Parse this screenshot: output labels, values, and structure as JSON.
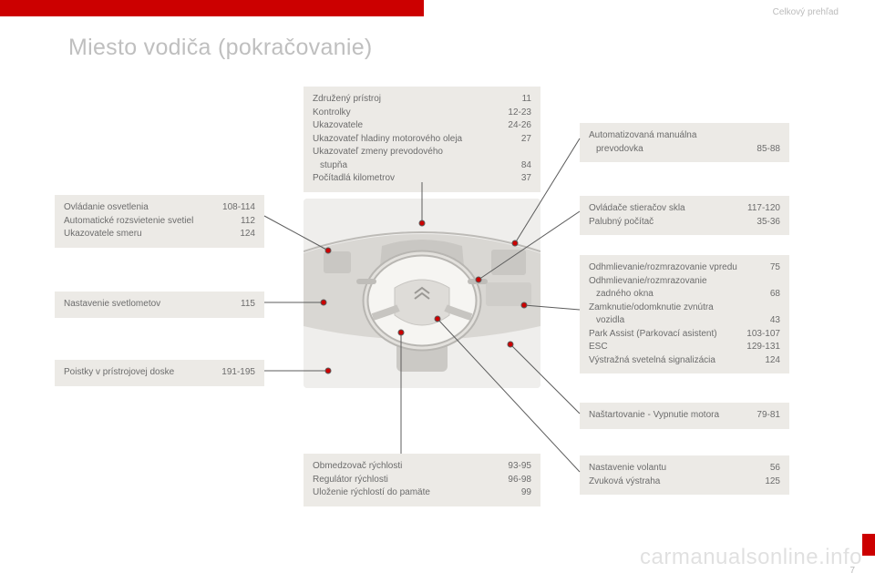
{
  "header": {
    "section": "Celkový prehľad",
    "title": "Miesto vodiča (pokračovanie)"
  },
  "boxes": {
    "top_center": {
      "items": [
        {
          "label": "Združený prístroj",
          "page": "11"
        },
        {
          "label": "Kontrolky",
          "page": "12-23"
        },
        {
          "label": "Ukazovatele",
          "page": "24-26"
        },
        {
          "label": "Ukazovateľ hladiny motorového oleja",
          "page": "27"
        },
        {
          "label": "Ukazovateľ zmeny prevodového",
          "page": ""
        },
        {
          "label": "stupňa",
          "page": "84",
          "indent": true
        },
        {
          "label": "Počítadlá kilometrov",
          "page": "37"
        }
      ]
    },
    "left1": {
      "items": [
        {
          "label": "Ovládanie osvetlenia",
          "page": "108-114"
        },
        {
          "label": "Automatické rozsvietenie svetiel",
          "page": "112"
        },
        {
          "label": "Ukazovatele smeru",
          "page": "124"
        }
      ]
    },
    "left2": {
      "items": [
        {
          "label": "Nastavenie svetlometov",
          "page": "115"
        }
      ]
    },
    "left3": {
      "items": [
        {
          "label": "Poistky v prístrojovej doske",
          "page": "191-195"
        }
      ]
    },
    "right1": {
      "items": [
        {
          "label": "Automatizovaná manuálna",
          "page": ""
        },
        {
          "label": "prevodovka",
          "page": "85-88",
          "indent": true
        }
      ]
    },
    "right2": {
      "items": [
        {
          "label": "Ovládače stieračov skla",
          "page": "117-120"
        },
        {
          "label": "Palubný počítač",
          "page": "35-36"
        }
      ]
    },
    "right3": {
      "items": [
        {
          "label": "Odhmlievanie/rozmrazovanie vpredu",
          "page": "75"
        },
        {
          "label": "Odhmlievanie/rozmrazovanie",
          "page": ""
        },
        {
          "label": "zadného okna",
          "page": "68",
          "indent": true
        },
        {
          "label": "Zamknutie/odomknutie zvnútra",
          "page": ""
        },
        {
          "label": "vozidla",
          "page": "43",
          "indent": true
        },
        {
          "label": "Park Assist (Parkovací asistent)",
          "page": "103-107"
        },
        {
          "label": "ESC",
          "page": "129-131"
        },
        {
          "label": "Výstražná svetelná signalizácia",
          "page": "124"
        }
      ]
    },
    "right4": {
      "items": [
        {
          "label": "Naštartovanie - Vypnutie motora",
          "page": "79-81"
        }
      ]
    },
    "right5": {
      "items": [
        {
          "label": "Nastavenie volantu",
          "page": "56"
        },
        {
          "label": "Zvuková výstraha",
          "page": "125"
        }
      ]
    },
    "bottom_center": {
      "items": [
        {
          "label": "Obmedzovač rýchlosti",
          "page": "93-95"
        },
        {
          "label": "Regulátor rýchlosti",
          "page": "96-98"
        },
        {
          "label": "Uloženie rýchlostí do pamäte",
          "page": "99"
        }
      ]
    }
  },
  "footer": {
    "watermark": "carmanualsonline.info",
    "page": "7"
  },
  "style": {
    "accent": "#c00",
    "box_bg": "#eceae6",
    "text": "#6c6c6c",
    "title_color": "#bfbfbf",
    "dot": "#c00",
    "line": "#5c5c5c"
  }
}
